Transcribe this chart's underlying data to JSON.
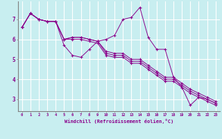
{
  "xlabel": "Windchill (Refroidissement éolien,°C)",
  "bg_color": "#c8eef0",
  "line_color": "#8b008b",
  "grid_color": "#ffffff",
  "axis_color": "#808080",
  "x_ticks": [
    0,
    1,
    2,
    3,
    4,
    5,
    6,
    7,
    8,
    9,
    10,
    11,
    12,
    13,
    14,
    15,
    16,
    17,
    18,
    19,
    20,
    21,
    22,
    23
  ],
  "y_ticks": [
    3,
    4,
    5,
    6,
    7
  ],
  "ylim": [
    2.4,
    7.9
  ],
  "xlim": [
    -0.5,
    23.5
  ],
  "series1": [
    6.6,
    7.3,
    7.0,
    6.9,
    6.9,
    5.7,
    5.2,
    5.1,
    5.5,
    5.9,
    6.0,
    6.2,
    7.0,
    7.1,
    7.6,
    6.1,
    5.5,
    5.5,
    4.1,
    3.6,
    2.7,
    3.1,
    3.0,
    2.8
  ],
  "series2": [
    6.6,
    7.3,
    7.0,
    6.9,
    6.9,
    6.0,
    6.1,
    6.1,
    6.0,
    5.9,
    5.4,
    5.3,
    5.3,
    5.0,
    5.0,
    4.7,
    4.4,
    4.1,
    4.1,
    3.8,
    3.5,
    3.3,
    3.1,
    2.9
  ],
  "series3": [
    6.6,
    7.3,
    7.0,
    6.9,
    6.9,
    6.0,
    6.1,
    6.1,
    6.0,
    5.9,
    5.3,
    5.2,
    5.2,
    4.9,
    4.9,
    4.6,
    4.3,
    4.0,
    4.0,
    3.7,
    3.4,
    3.2,
    3.0,
    2.8
  ],
  "series4": [
    6.6,
    7.3,
    7.0,
    6.9,
    6.9,
    6.0,
    6.0,
    6.0,
    5.9,
    5.8,
    5.2,
    5.1,
    5.1,
    4.8,
    4.8,
    4.5,
    4.2,
    3.9,
    3.9,
    3.6,
    3.3,
    3.1,
    2.9,
    2.7
  ]
}
